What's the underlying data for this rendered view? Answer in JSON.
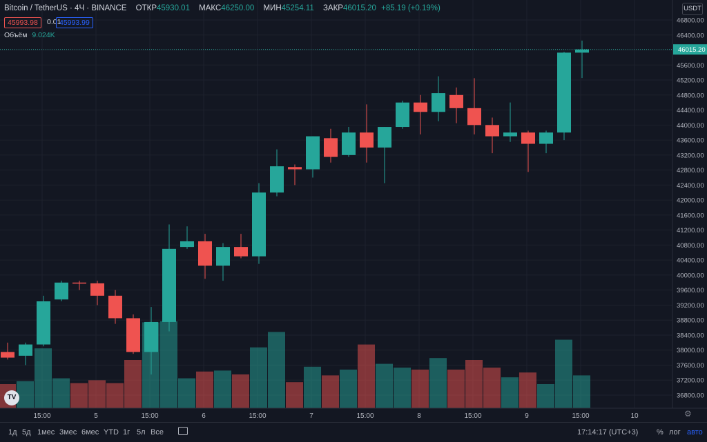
{
  "legend": {
    "symbol": "Bitcoin / TetherUS · 4Ч · BINANCE",
    "open_label": "ОТКР",
    "open": "45930.01",
    "high_label": "МАКС",
    "high": "46250.00",
    "low_label": "МИН",
    "low": "45254.11",
    "close_label": "ЗАКР",
    "close": "46015.20",
    "change": "+85.19 (+0.19%)",
    "sell_price": "45993.98",
    "spread": "0.01",
    "buy_price": "45993.99",
    "volume_label": "Объём",
    "volume_value": "9.024K"
  },
  "currency_button": "USDT",
  "last_price_label": "46015.20",
  "bottom_bar": {
    "timeframes": [
      "1д",
      "5д",
      "1мес",
      "3мес",
      "6мес",
      "YTD",
      "1г",
      "5л",
      "Все"
    ],
    "time": "17:14:17 (UTC+3)",
    "percent": "%",
    "log": "лог",
    "auto": "авто"
  },
  "colors": {
    "up": "#26a69a",
    "down": "#ef5350",
    "accent": "#2962ff",
    "background": "#131722"
  },
  "chart_data": {
    "type": "candlestick",
    "y_axis_ticks": [
      46800,
      46400,
      46000,
      45600,
      45200,
      44800,
      44400,
      44000,
      43600,
      43200,
      42800,
      42400,
      42000,
      41600,
      41200,
      40800,
      40400,
      40000,
      39600,
      39200,
      38800,
      38400,
      38000,
      37600,
      37200,
      36800
    ],
    "x_axis_ticks": [
      "15:00",
      "5",
      "15:00",
      "6",
      "15:00",
      "7",
      "15:00",
      "8",
      "15:00",
      "9",
      "15:00",
      "10"
    ],
    "last_price": 46015.2,
    "candles": [
      {
        "o": 37950,
        "h": 38200,
        "l": 37750,
        "c": 37800
      },
      {
        "o": 37850,
        "h": 38200,
        "l": 37600,
        "c": 38150
      },
      {
        "o": 38150,
        "h": 39450,
        "l": 38100,
        "c": 39300
      },
      {
        "o": 39350,
        "h": 39850,
        "l": 39300,
        "c": 39800
      },
      {
        "o": 39800,
        "h": 39850,
        "l": 39600,
        "c": 39780
      },
      {
        "o": 39780,
        "h": 39850,
        "l": 39200,
        "c": 39450
      },
      {
        "o": 39450,
        "h": 39600,
        "l": 38700,
        "c": 38850
      },
      {
        "o": 38850,
        "h": 38950,
        "l": 37900,
        "c": 37950
      },
      {
        "o": 37950,
        "h": 39150,
        "l": 37350,
        "c": 38750
      },
      {
        "o": 38750,
        "h": 41350,
        "l": 38500,
        "c": 40700
      },
      {
        "o": 40750,
        "h": 41300,
        "l": 40700,
        "c": 40900
      },
      {
        "o": 40900,
        "h": 41100,
        "l": 39900,
        "c": 40250
      },
      {
        "o": 40250,
        "h": 40850,
        "l": 39850,
        "c": 40750
      },
      {
        "o": 40750,
        "h": 41100,
        "l": 40450,
        "c": 40500
      },
      {
        "o": 40500,
        "h": 42450,
        "l": 40300,
        "c": 42200
      },
      {
        "o": 42200,
        "h": 43350,
        "l": 42100,
        "c": 42900
      },
      {
        "o": 42880,
        "h": 42950,
        "l": 42400,
        "c": 42820
      },
      {
        "o": 42820,
        "h": 43700,
        "l": 42600,
        "c": 43700
      },
      {
        "o": 43650,
        "h": 43900,
        "l": 43000,
        "c": 43150
      },
      {
        "o": 43200,
        "h": 43950,
        "l": 43150,
        "c": 43800
      },
      {
        "o": 43800,
        "h": 44550,
        "l": 43000,
        "c": 43400
      },
      {
        "o": 43400,
        "h": 43950,
        "l": 42450,
        "c": 43950
      },
      {
        "o": 43950,
        "h": 44650,
        "l": 43900,
        "c": 44600
      },
      {
        "o": 44600,
        "h": 44800,
        "l": 43750,
        "c": 44350
      },
      {
        "o": 44350,
        "h": 45300,
        "l": 44100,
        "c": 44850
      },
      {
        "o": 44800,
        "h": 45000,
        "l": 44050,
        "c": 44450
      },
      {
        "o": 44450,
        "h": 45250,
        "l": 43750,
        "c": 44000
      },
      {
        "o": 44000,
        "h": 44200,
        "l": 43250,
        "c": 43700
      },
      {
        "o": 43700,
        "h": 44600,
        "l": 43550,
        "c": 43800
      },
      {
        "o": 43800,
        "h": 43850,
        "l": 42750,
        "c": 43500
      },
      {
        "o": 43500,
        "h": 43850,
        "l": 43250,
        "c": 43800
      },
      {
        "o": 43800,
        "h": 45950,
        "l": 43600,
        "c": 45930
      },
      {
        "o": 45930,
        "h": 46250,
        "l": 45254,
        "c": 46015
      }
    ],
    "volumes": [
      2.5,
      2.8,
      6.2,
      3.1,
      2.6,
      2.9,
      2.6,
      5.0,
      8.9,
      9.0,
      3.1,
      3.8,
      3.9,
      3.5,
      6.3,
      7.9,
      2.7,
      4.3,
      3.4,
      4.0,
      6.6,
      4.6,
      4.2,
      4.0,
      5.2,
      4.0,
      5.0,
      4.2,
      3.2,
      3.7,
      2.5,
      7.1,
      3.4
    ]
  }
}
